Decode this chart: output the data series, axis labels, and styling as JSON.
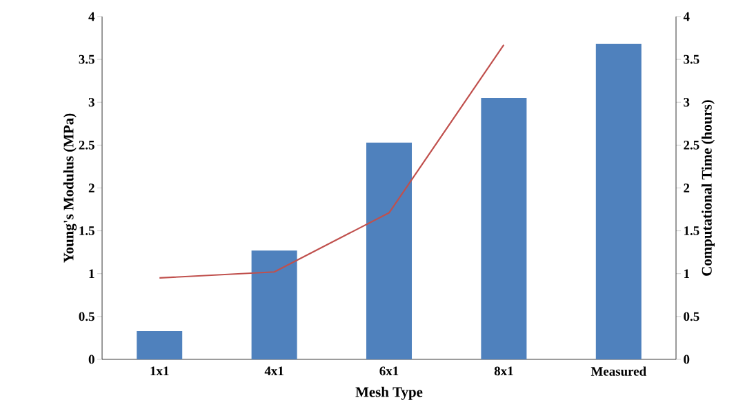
{
  "chart_data": {
    "type": "bar",
    "xlabel": "Mesh Type",
    "ylabel": "Young's Modulus (MPa)",
    "y2label": "Computational Time (hours)",
    "categories": [
      "1x1",
      "4x1",
      "6x1",
      "8x1",
      "Measured"
    ],
    "series": [
      {
        "color": "#4f81bd",
        "values": [
          0.33,
          1.27,
          2.53,
          3.05,
          3.68
        ]
      },
      {
        "type": "line",
        "axis": "y2",
        "color": "#c0504d",
        "values": [
          0.95,
          1.02,
          1.71,
          3.67,
          null
        ]
      }
    ],
    "ylim": [
      0,
      4
    ],
    "yticks": [
      0,
      0.5,
      1,
      1.5,
      2,
      2.5,
      3,
      3.5,
      4
    ],
    "y2lim": [
      0,
      4
    ],
    "y2ticks": [
      0,
      0.5,
      1,
      1.5,
      2,
      2.5,
      3,
      3.5,
      4
    ]
  }
}
